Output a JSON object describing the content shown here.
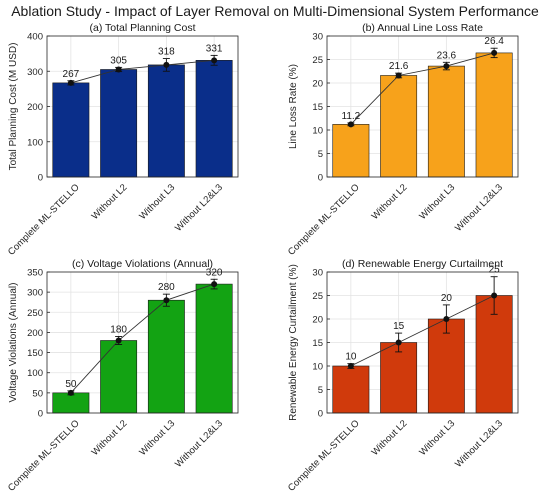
{
  "suptitle": "Ablation Study - Impact of Layer Removal on Multi-Dimensional System Performance",
  "chart_data": [
    {
      "type": "bar",
      "title": "(a) Total Planning Cost",
      "xlabel": "",
      "ylabel": "Total Planning Cost (M USD)",
      "categories": [
        "Complete ML-STELLO",
        "Without L2",
        "Without L3",
        "Without L2&L3"
      ],
      "values": [
        267,
        305,
        318,
        331
      ],
      "value_labels": [
        "267",
        "305",
        "318",
        "331"
      ],
      "errors": [
        6,
        6,
        18,
        14
      ],
      "ylim": [
        0,
        400
      ],
      "yticks": [
        0,
        100,
        200,
        300,
        400
      ],
      "yticklabels": [
        "0",
        "100",
        "200",
        "300",
        "400"
      ],
      "color": "#0a2e8a",
      "grid": true
    },
    {
      "type": "bar",
      "title": "(b) Annual Line Loss Rate",
      "xlabel": "",
      "ylabel": "Line Loss Rate (%)",
      "categories": [
        "Complete ML-STELLO",
        "Without L2",
        "Without L3",
        "Without L2&L3"
      ],
      "values": [
        11.2,
        21.6,
        23.6,
        26.4
      ],
      "value_labels": [
        "11.2",
        "21.6",
        "23.6",
        "26.4"
      ],
      "errors": [
        0.3,
        0.5,
        0.8,
        1.0
      ],
      "ylim": [
        0,
        30
      ],
      "yticks": [
        0,
        5,
        10,
        15,
        20,
        25,
        30
      ],
      "yticklabels": [
        "0",
        "5",
        "10",
        "15",
        "20",
        "25",
        "30"
      ],
      "color": "#f7a21b",
      "grid": true
    },
    {
      "type": "bar",
      "title": "(c) Voltage Violations (Annual)",
      "xlabel": "",
      "ylabel": "Voltage Violations (Annual)",
      "categories": [
        "Complete ML-STELLO",
        "Without L2",
        "Without L3",
        "Without L2&L3"
      ],
      "values": [
        50,
        180,
        280,
        320
      ],
      "value_labels": [
        "50",
        "180",
        "280",
        "320"
      ],
      "errors": [
        5,
        10,
        15,
        12
      ],
      "ylim": [
        0,
        350
      ],
      "yticks": [
        0,
        50,
        100,
        150,
        200,
        250,
        300,
        350
      ],
      "yticklabels": [
        "0",
        "50",
        "100",
        "150",
        "200",
        "250",
        "300",
        "350"
      ],
      "color": "#13a313",
      "grid": true
    },
    {
      "type": "bar",
      "title": "(d) Renewable Energy Curtailment",
      "xlabel": "",
      "ylabel": "Renewable Energy Curtailment (%)",
      "categories": [
        "Complete ML-STELLO",
        "Without L2",
        "Without L3",
        "Without L2&L3"
      ],
      "values": [
        10,
        15,
        20,
        25
      ],
      "value_labels": [
        "10",
        "15",
        "20",
        "25"
      ],
      "errors": [
        0.5,
        2,
        3,
        4
      ],
      "ylim": [
        0,
        30
      ],
      "yticks": [
        0,
        5,
        10,
        15,
        20,
        25,
        30
      ],
      "yticklabels": [
        "0",
        "5",
        "10",
        "15",
        "20",
        "25",
        "30"
      ],
      "color": "#d03a0c",
      "grid": true
    }
  ]
}
